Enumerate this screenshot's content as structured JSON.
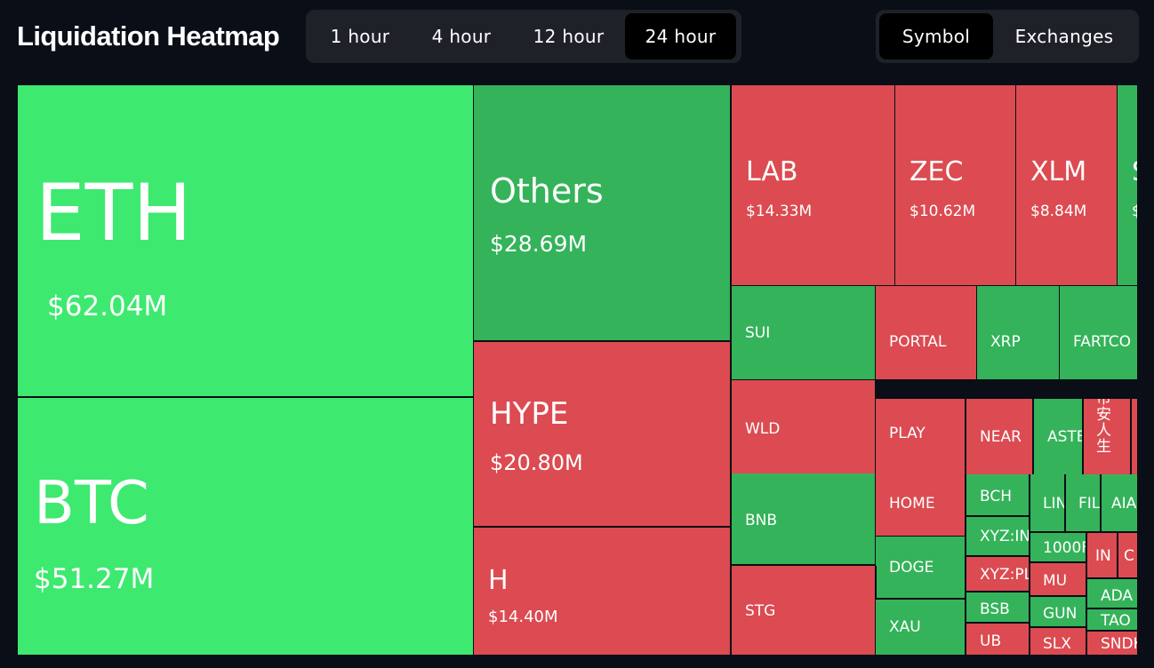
{
  "title": "Liquidation Heatmap",
  "timeframes": [
    {
      "label": "1 hour",
      "active": false
    },
    {
      "label": "4 hour",
      "active": false
    },
    {
      "label": "12 hour",
      "active": false
    },
    {
      "label": "24 hour",
      "active": true
    }
  ],
  "views": [
    {
      "label": "Symbol",
      "active": true
    },
    {
      "label": "Exchanges",
      "active": false
    }
  ],
  "colors": {
    "bright_green": "#3de96f",
    "green": "#34b35a",
    "red": "#db4b51",
    "background": "#0a0e17"
  },
  "tiles": [
    {
      "symbol": "ETH",
      "value": "$62.04M",
      "color": "bright_green"
    },
    {
      "symbol": "BTC",
      "value": "$51.27M",
      "color": "bright_green"
    },
    {
      "symbol": "Others",
      "value": "$28.69M",
      "color": "green"
    },
    {
      "symbol": "HYPE",
      "value": "$20.80M",
      "color": "red"
    },
    {
      "symbol": "H",
      "value": "$14.40M",
      "color": "red"
    },
    {
      "symbol": "LAB",
      "value": "$14.33M",
      "color": "red"
    },
    {
      "symbol": "ZEC",
      "value": "$10.62M",
      "color": "red"
    },
    {
      "symbol": "XLM",
      "value": "$8.84M",
      "color": "red"
    },
    {
      "symbol": "S",
      "value": "$",
      "color": "green"
    },
    {
      "symbol": "SUI",
      "value": "",
      "color": "green"
    },
    {
      "symbol": "PORTAL",
      "value": "",
      "color": "red"
    },
    {
      "symbol": "XRP",
      "value": "",
      "color": "green"
    },
    {
      "symbol": "FARTCO",
      "value": "",
      "color": "green"
    },
    {
      "symbol": "WLD",
      "value": "",
      "color": "red"
    },
    {
      "symbol": "PLAY",
      "value": "",
      "color": "red"
    },
    {
      "symbol": "NEAR",
      "value": "",
      "color": "red"
    },
    {
      "symbol": "ASTE",
      "value": "",
      "color": "green"
    },
    {
      "symbol": "币\n安\n人\n生",
      "value": "",
      "color": "red"
    },
    {
      "symbol": "",
      "value": "",
      "color": "red"
    },
    {
      "symbol": "BNB",
      "value": "",
      "color": "green"
    },
    {
      "symbol": "HOME",
      "value": "",
      "color": "red"
    },
    {
      "symbol": "BCH",
      "value": "",
      "color": "green"
    },
    {
      "symbol": "LIN",
      "value": "",
      "color": "green"
    },
    {
      "symbol": "FIL",
      "value": "",
      "color": "green"
    },
    {
      "symbol": "AIA",
      "value": "",
      "color": "green"
    },
    {
      "symbol": "XYZ:IN",
      "value": "",
      "color": "green"
    },
    {
      "symbol": "1000F",
      "value": "",
      "color": "green"
    },
    {
      "symbol": "DOGE",
      "value": "",
      "color": "green"
    },
    {
      "symbol": "XYZ:PL",
      "value": "",
      "color": "red"
    },
    {
      "symbol": "IN",
      "value": "",
      "color": "red"
    },
    {
      "symbol": "C",
      "value": "",
      "color": "red"
    },
    {
      "symbol": "MU",
      "value": "",
      "color": "red"
    },
    {
      "symbol": "STG",
      "value": "",
      "color": "red"
    },
    {
      "symbol": "XAU",
      "value": "",
      "color": "green"
    },
    {
      "symbol": "BSB",
      "value": "",
      "color": "green"
    },
    {
      "symbol": "GUN",
      "value": "",
      "color": "green"
    },
    {
      "symbol": "ADA",
      "value": "",
      "color": "green"
    },
    {
      "symbol": "TAO",
      "value": "",
      "color": "green"
    },
    {
      "symbol": "UB",
      "value": "",
      "color": "red"
    },
    {
      "symbol": "SLX",
      "value": "",
      "color": "red"
    },
    {
      "symbol": "SNDK",
      "value": "",
      "color": "red"
    }
  ]
}
